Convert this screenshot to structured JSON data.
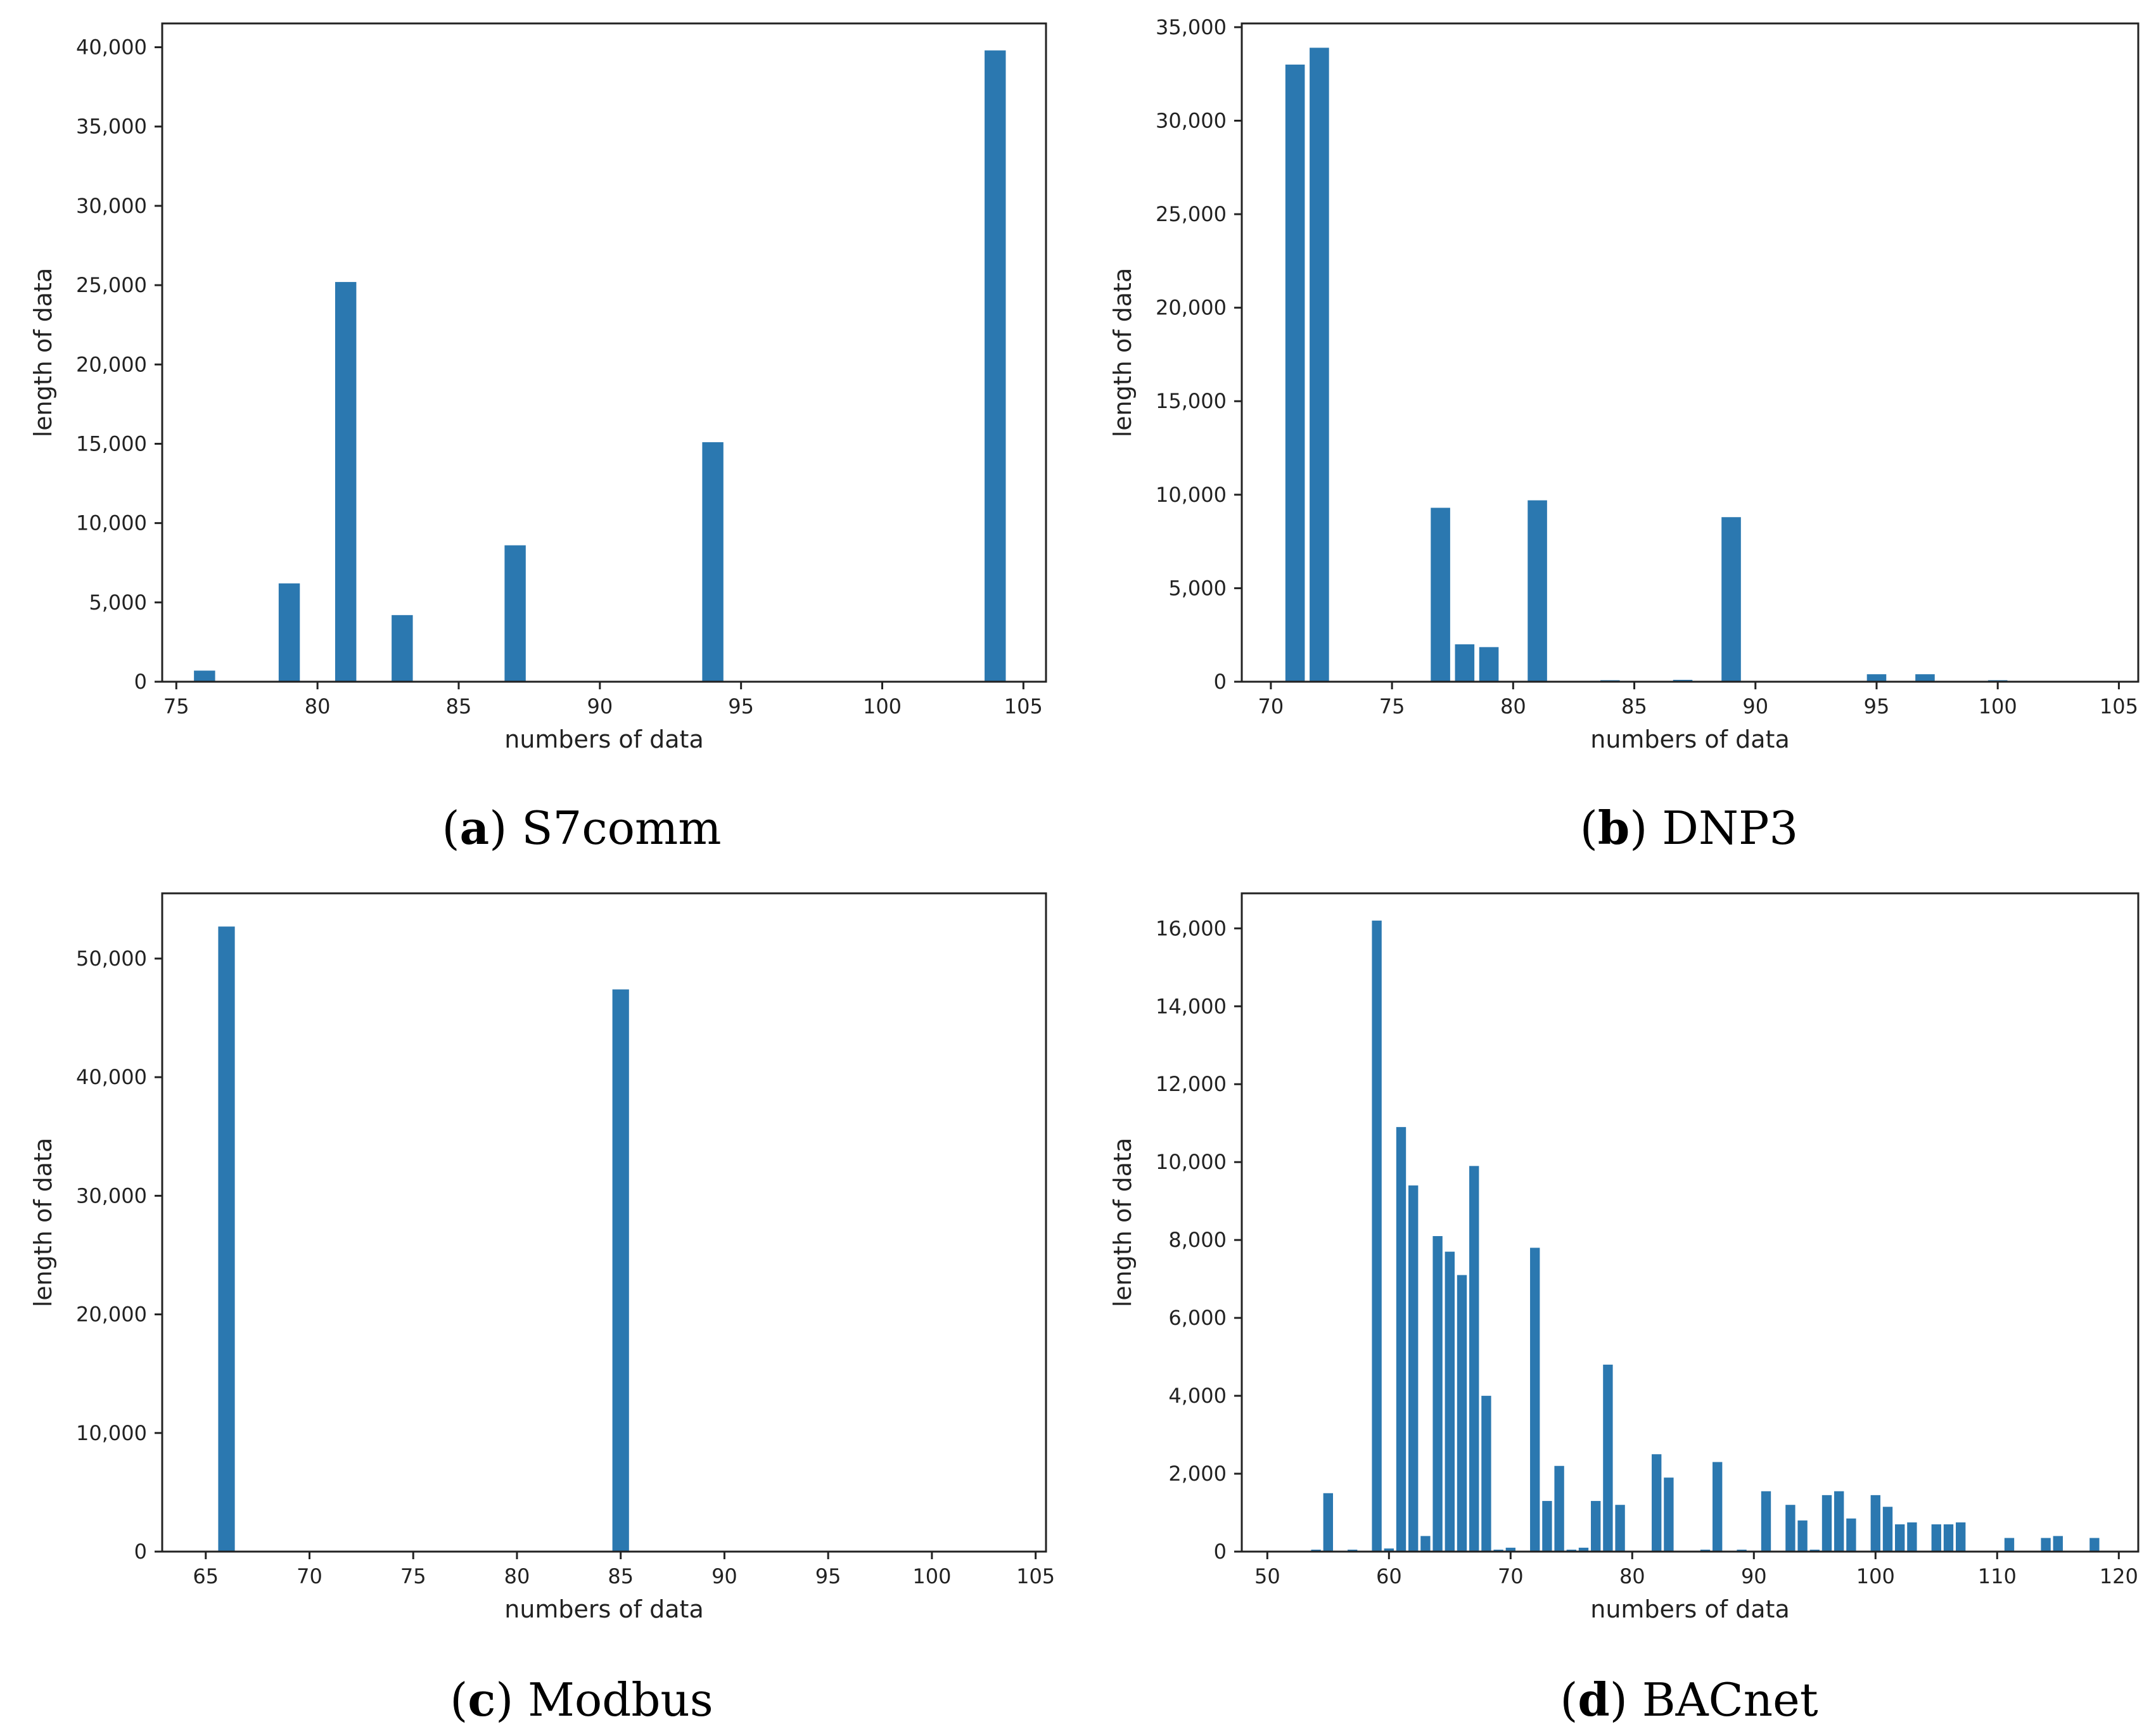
{
  "colors": {
    "bar": "#2b78b0"
  },
  "chart_data": [
    {
      "type": "bar",
      "panel_id": "a",
      "caption_letter": "a",
      "caption_name": "S7comm",
      "xlabel": "numbers of data",
      "ylabel": "length of data",
      "xlim": [
        74.5,
        105.8
      ],
      "ylim": [
        0,
        41500
      ],
      "xticks": [
        75,
        80,
        85,
        90,
        95,
        100,
        105
      ],
      "xtick_labels": [
        "75",
        "80",
        "85",
        "90",
        "95",
        "100",
        "105"
      ],
      "yticks": [
        0,
        5000,
        10000,
        15000,
        20000,
        25000,
        30000,
        35000,
        40000
      ],
      "ytick_labels": [
        "0",
        "5,000",
        "10,000",
        "15,000",
        "20,000",
        "25,000",
        "30,000",
        "35,000",
        "40,000"
      ],
      "bar_width": 0.75,
      "x": [
        76,
        79,
        81,
        83,
        87,
        94,
        104
      ],
      "values": [
        700,
        6200,
        25200,
        4200,
        8600,
        15100,
        39800
      ]
    },
    {
      "type": "bar",
      "panel_id": "b",
      "caption_letter": "b",
      "caption_name": "DNP3",
      "xlabel": "numbers of data",
      "ylabel": "length of data",
      "xlim": [
        68.8,
        105.8
      ],
      "ylim": [
        0,
        35200
      ],
      "xticks": [
        70,
        75,
        80,
        85,
        90,
        95,
        100,
        105
      ],
      "xtick_labels": [
        "70",
        "75",
        "80",
        "85",
        "90",
        "95",
        "100",
        "105"
      ],
      "yticks": [
        0,
        5000,
        10000,
        15000,
        20000,
        25000,
        30000,
        35000
      ],
      "ytick_labels": [
        "0",
        "5,000",
        "10,000",
        "15,000",
        "20,000",
        "25,000",
        "30,000",
        "35,000"
      ],
      "bar_width": 0.8,
      "x": [
        71,
        72,
        77,
        78,
        79,
        81,
        84,
        87,
        89,
        95,
        97,
        100
      ],
      "values": [
        33000,
        33900,
        9300,
        2000,
        1850,
        9700,
        80,
        100,
        8800,
        400,
        400,
        80
      ]
    },
    {
      "type": "bar",
      "panel_id": "c",
      "caption_letter": "c",
      "caption_name": "Modbus",
      "xlabel": "numbers of data",
      "ylabel": "length of data",
      "xlim": [
        62.9,
        105.5
      ],
      "ylim": [
        0,
        55500
      ],
      "xticks": [
        65,
        70,
        75,
        80,
        85,
        90,
        95,
        100,
        105
      ],
      "xtick_labels": [
        "65",
        "70",
        "75",
        "80",
        "85",
        "90",
        "95",
        "100",
        "105"
      ],
      "yticks": [
        0,
        10000,
        20000,
        30000,
        40000,
        50000
      ],
      "ytick_labels": [
        "0",
        "10,000",
        "20,000",
        "30,000",
        "40,000",
        "50,000"
      ],
      "bar_width": 0.8,
      "x": [
        66,
        85
      ],
      "values": [
        52700,
        47400
      ]
    },
    {
      "type": "bar",
      "panel_id": "d",
      "caption_letter": "d",
      "caption_name": "BACnet",
      "xlabel": "numbers of data",
      "ylabel": "length of data",
      "xlim": [
        47.9,
        121.6
      ],
      "ylim": [
        0,
        16900
      ],
      "xticks": [
        50,
        60,
        70,
        80,
        90,
        100,
        110,
        120
      ],
      "xtick_labels": [
        "50",
        "60",
        "70",
        "80",
        "90",
        "100",
        "110",
        "120"
      ],
      "yticks": [
        0,
        2000,
        4000,
        6000,
        8000,
        10000,
        12000,
        14000,
        16000
      ],
      "ytick_labels": [
        "0",
        "2,000",
        "4,000",
        "6,000",
        "8,000",
        "10,000",
        "12,000",
        "14,000",
        "16,000"
      ],
      "bar_width": 0.8,
      "x": [
        54,
        55,
        57,
        59,
        60,
        61,
        62,
        63,
        64,
        65,
        66,
        67,
        68,
        69,
        70,
        72,
        73,
        74,
        75,
        76,
        77,
        78,
        79,
        82,
        83,
        86,
        87,
        89,
        91,
        93,
        94,
        95,
        96,
        97,
        98,
        100,
        101,
        102,
        103,
        105,
        106,
        107,
        111,
        114,
        115,
        118
      ],
      "values": [
        50,
        1500,
        50,
        16200,
        80,
        10900,
        9400,
        400,
        8100,
        7700,
        7100,
        9900,
        4000,
        50,
        100,
        7800,
        1300,
        2200,
        50,
        100,
        1300,
        4800,
        1200,
        2500,
        1900,
        50,
        2300,
        50,
        1550,
        1200,
        800,
        50,
        1450,
        1550,
        850,
        1450,
        1150,
        700,
        750,
        700,
        700,
        750,
        350,
        350,
        400,
        350
      ]
    }
  ]
}
